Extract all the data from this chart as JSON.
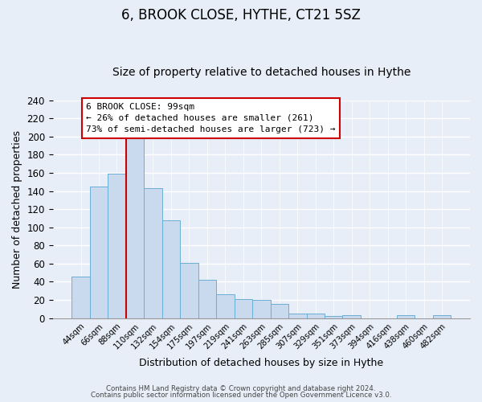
{
  "title": "6, BROOK CLOSE, HYTHE, CT21 5SZ",
  "subtitle": "Size of property relative to detached houses in Hythe",
  "xlabel": "Distribution of detached houses by size in Hythe",
  "ylabel": "Number of detached properties",
  "bar_labels": [
    "44sqm",
    "66sqm",
    "88sqm",
    "110sqm",
    "132sqm",
    "154sqm",
    "175sqm",
    "197sqm",
    "219sqm",
    "241sqm",
    "263sqm",
    "285sqm",
    "307sqm",
    "329sqm",
    "351sqm",
    "373sqm",
    "394sqm",
    "416sqm",
    "438sqm",
    "460sqm",
    "482sqm"
  ],
  "bar_values": [
    46,
    145,
    159,
    201,
    143,
    108,
    61,
    42,
    26,
    21,
    20,
    16,
    5,
    5,
    2,
    3,
    0,
    0,
    3,
    0,
    3
  ],
  "bar_color": "#c9d9ee",
  "bar_edge_color": "#6baed6",
  "annotation_text1": "6 BROOK CLOSE: 99sqm",
  "annotation_text2": "← 26% of detached houses are smaller (261)",
  "annotation_text3": "73% of semi-detached houses are larger (723) →",
  "annotation_box_color": "#ffffff",
  "annotation_box_edge_color": "#cc0000",
  "vline_color": "#cc0000",
  "ylim": [
    0,
    240
  ],
  "yticks": [
    0,
    20,
    40,
    60,
    80,
    100,
    120,
    140,
    160,
    180,
    200,
    220,
    240
  ],
  "footer1": "Contains HM Land Registry data © Crown copyright and database right 2024.",
  "footer2": "Contains public sector information licensed under the Open Government Licence v3.0.",
  "bg_color": "#e8eef8",
  "plot_bg_color": "#e8eef8",
  "grid_color": "#ffffff",
  "title_fontsize": 12,
  "subtitle_fontsize": 10
}
